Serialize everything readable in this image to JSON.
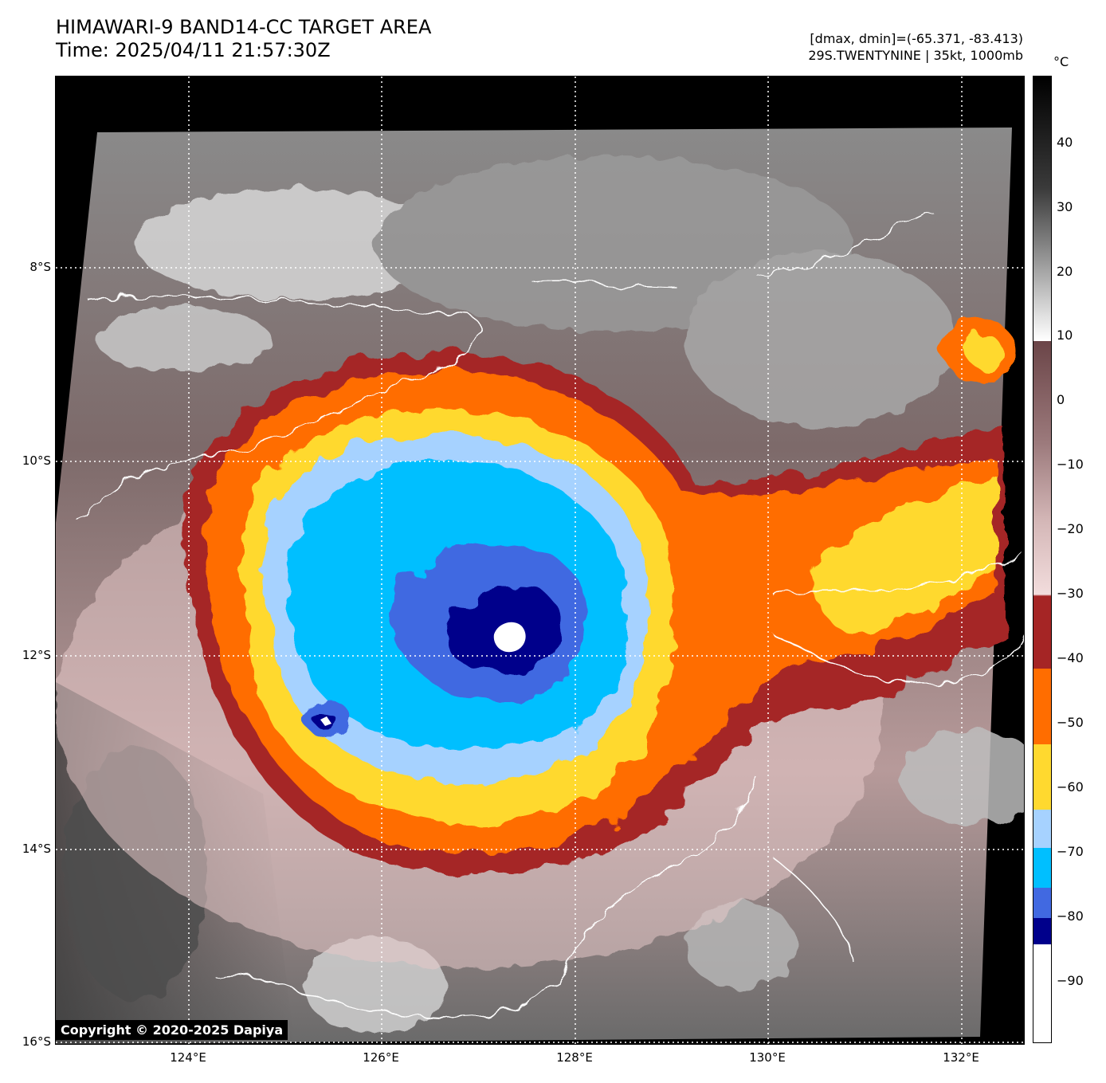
{
  "header": {
    "title": "HIMAWARI-9 BAND14-CC TARGET AREA",
    "time": "Time: 2025/04/11 21:57:30Z",
    "range": "[dmax, dmin]=(-65.371, -83.413)",
    "storm": "29S.TWENTYNINE | 35kt, 1000mb"
  },
  "map": {
    "lat_labels": [
      "8°S",
      "10°S",
      "12°S",
      "14°S",
      "16°S"
    ],
    "lon_labels": [
      "124°E",
      "126°E",
      "128°E",
      "130°E",
      "132°E"
    ]
  },
  "colorbar": {
    "unit": "°C",
    "labels": [
      "40",
      "30",
      "20",
      "10",
      "0",
      "−10",
      "−20",
      "−30",
      "−40",
      "−50",
      "−60",
      "−70",
      "−80",
      "−90"
    ],
    "colors": {
      "warm": "#000000",
      "gray_light": "#ffffff",
      "brown": "#6b4548",
      "pink_light": "#f2dcdc",
      "dark_red": "#a52525",
      "orange": "#ff6d00",
      "yellow": "#ffd92f",
      "light_blue": "#a6d2ff",
      "cyan": "#00bfff",
      "blue": "#4169e1",
      "navy": "#00008b",
      "white": "#ffffff"
    }
  },
  "copyright": "Copyright © 2020-2025 Dapiya"
}
